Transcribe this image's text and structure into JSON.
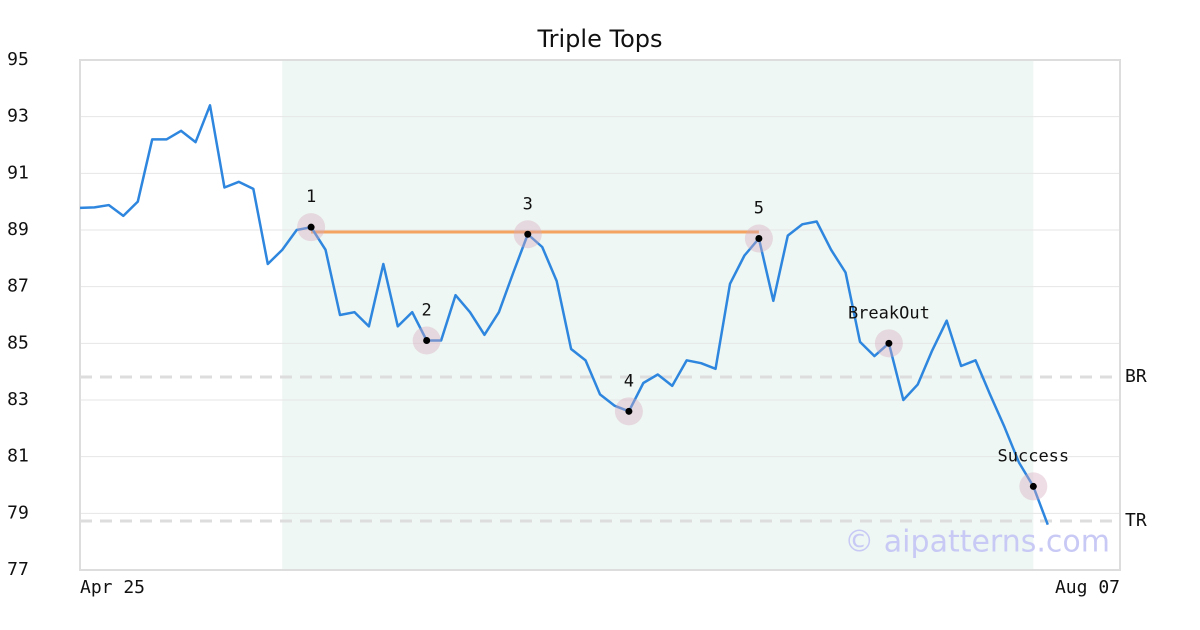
{
  "chart_data": {
    "type": "line",
    "title": "Triple Tops",
    "categories": [
      "Apr 25",
      null,
      null,
      null,
      null,
      null,
      null,
      null,
      null,
      null,
      null,
      null,
      null,
      null,
      null,
      null,
      null,
      null,
      null,
      null,
      null,
      null,
      null,
      null,
      null,
      null,
      null,
      null,
      null,
      null,
      null,
      null,
      null,
      null,
      null,
      null,
      null,
      null,
      null,
      null,
      null,
      null,
      null,
      null,
      null,
      null,
      null,
      null,
      null,
      null,
      null,
      null,
      null,
      null,
      null,
      null,
      null,
      null,
      null,
      null,
      null,
      null,
      null,
      null,
      null,
      null,
      null,
      null,
      null,
      null,
      null,
      null,
      "Aug 07"
    ],
    "series": [
      {
        "color": "#2e86de",
        "values": [
          89.78,
          89.8,
          89.88,
          89.5,
          90.0,
          92.2,
          92.2,
          92.5,
          92.1,
          93.4,
          90.5,
          90.7,
          90.45,
          87.8,
          88.3,
          89.0,
          89.1,
          88.3,
          86.0,
          86.1,
          85.6,
          87.8,
          85.6,
          86.1,
          85.1,
          85.1,
          86.7,
          86.1,
          85.3,
          86.1,
          87.5,
          88.85,
          88.4,
          87.2,
          84.8,
          84.4,
          83.2,
          82.8,
          82.6,
          83.6,
          83.9,
          83.5,
          84.4,
          84.3,
          84.1,
          87.1,
          88.1,
          88.7,
          86.5,
          88.8,
          89.2,
          89.3,
          88.3,
          87.5,
          85.05,
          84.55,
          85.0,
          83.0,
          83.55,
          84.75,
          85.8,
          84.2,
          84.4,
          83.2,
          82.05,
          80.8,
          79.95,
          78.6,
          null,
          null,
          null,
          null,
          null
        ]
      }
    ],
    "ylim": [
      77,
      95
    ],
    "yticks": [
      77,
      79,
      81,
      83,
      85,
      87,
      89,
      91,
      93,
      95
    ],
    "grid": true,
    "highlight": {
      "start": 14,
      "end": 66,
      "color": "#eef7f3"
    },
    "resistance": {
      "value": 88.93,
      "start": 16,
      "end": 47,
      "color": "#f4a460"
    },
    "levels": [
      {
        "name": "BR",
        "value": 83.81
      },
      {
        "name": "TR",
        "value": 78.73
      }
    ],
    "annotations": [
      {
        "index": 16,
        "label": "1"
      },
      {
        "index": 24,
        "label": "2"
      },
      {
        "index": 31,
        "label": "3"
      },
      {
        "index": 38,
        "label": "4"
      },
      {
        "index": 47,
        "label": "5"
      },
      {
        "index": 56,
        "label": "BreakOut"
      },
      {
        "index": 66,
        "label": "Success"
      }
    ],
    "watermark": "© aipatterns.com"
  }
}
